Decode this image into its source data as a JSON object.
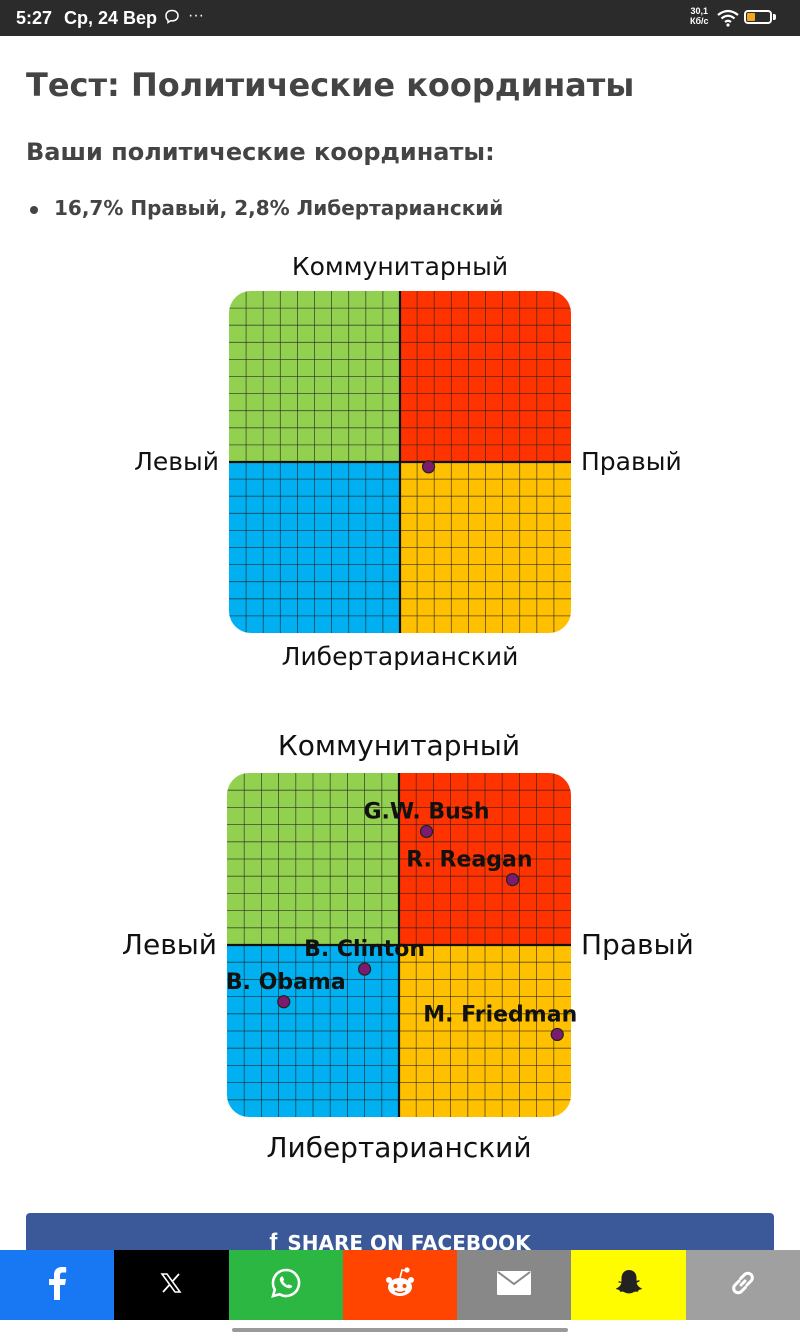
{
  "status_bar": {
    "time": "5:27",
    "date": "Ср, 24 Вер",
    "network_speed_value": "30,1",
    "network_speed_unit": "Кб/с",
    "battery_level": 0.35
  },
  "page": {
    "title": "Тест: Политические координаты",
    "subtitle": "Ваши политические координаты:",
    "results": [
      "16,7% Правый, 2,8% Либертарианский"
    ]
  },
  "chart_data": [
    {
      "type": "scatter",
      "title": "",
      "axis_labels": {
        "top": "Коммунитарный",
        "bottom": "Либертарианский",
        "left": "Левый",
        "right": "Правый"
      },
      "xlim": [
        -100,
        100
      ],
      "ylim": [
        -100,
        100
      ],
      "grid": true,
      "quadrant_colors": {
        "top_left": "#92d050",
        "top_right": "#ff3300",
        "bottom_left": "#00b0f0",
        "bottom_right": "#ffc000"
      },
      "points": [
        {
          "label": "",
          "x": 16.7,
          "y": -2.8
        }
      ]
    },
    {
      "type": "scatter",
      "title": "",
      "axis_labels": {
        "top": "Коммунитарный",
        "bottom": "Либертарианский",
        "left": "Левый",
        "right": "Правый"
      },
      "xlim": [
        -100,
        100
      ],
      "ylim": [
        -100,
        100
      ],
      "grid": true,
      "quadrant_colors": {
        "top_left": "#92d050",
        "top_right": "#ff3300",
        "bottom_left": "#00b0f0",
        "bottom_right": "#ffc000"
      },
      "points": [
        {
          "label": "G.W. Bush",
          "x": 16,
          "y": 66
        },
        {
          "label": "R. Reagan",
          "x": 66,
          "y": 38
        },
        {
          "label": "B. Clinton",
          "x": -20,
          "y": -14
        },
        {
          "label": "B. Obama",
          "x": -67,
          "y": -33
        },
        {
          "label": "M. Friedman",
          "x": 92,
          "y": -52
        }
      ]
    }
  ],
  "share": {
    "facebook_label": "SHARE ON FACEBOOK",
    "facebook_glyph": "f",
    "buttons": [
      {
        "name": "facebook",
        "color": "#1877f2",
        "icon": "facebook-icon"
      },
      {
        "name": "x",
        "color": "#000000",
        "icon": "x-icon"
      },
      {
        "name": "whatsapp",
        "color": "#2cb742",
        "icon": "whatsapp-icon"
      },
      {
        "name": "reddit",
        "color": "#ff4500",
        "icon": "reddit-icon"
      },
      {
        "name": "email",
        "color": "#888888",
        "icon": "email-icon"
      },
      {
        "name": "snapchat",
        "color": "#fffc00",
        "icon": "snapchat-icon"
      },
      {
        "name": "copy-link",
        "color": "#a0a0a0",
        "icon": "link-icon"
      }
    ]
  }
}
